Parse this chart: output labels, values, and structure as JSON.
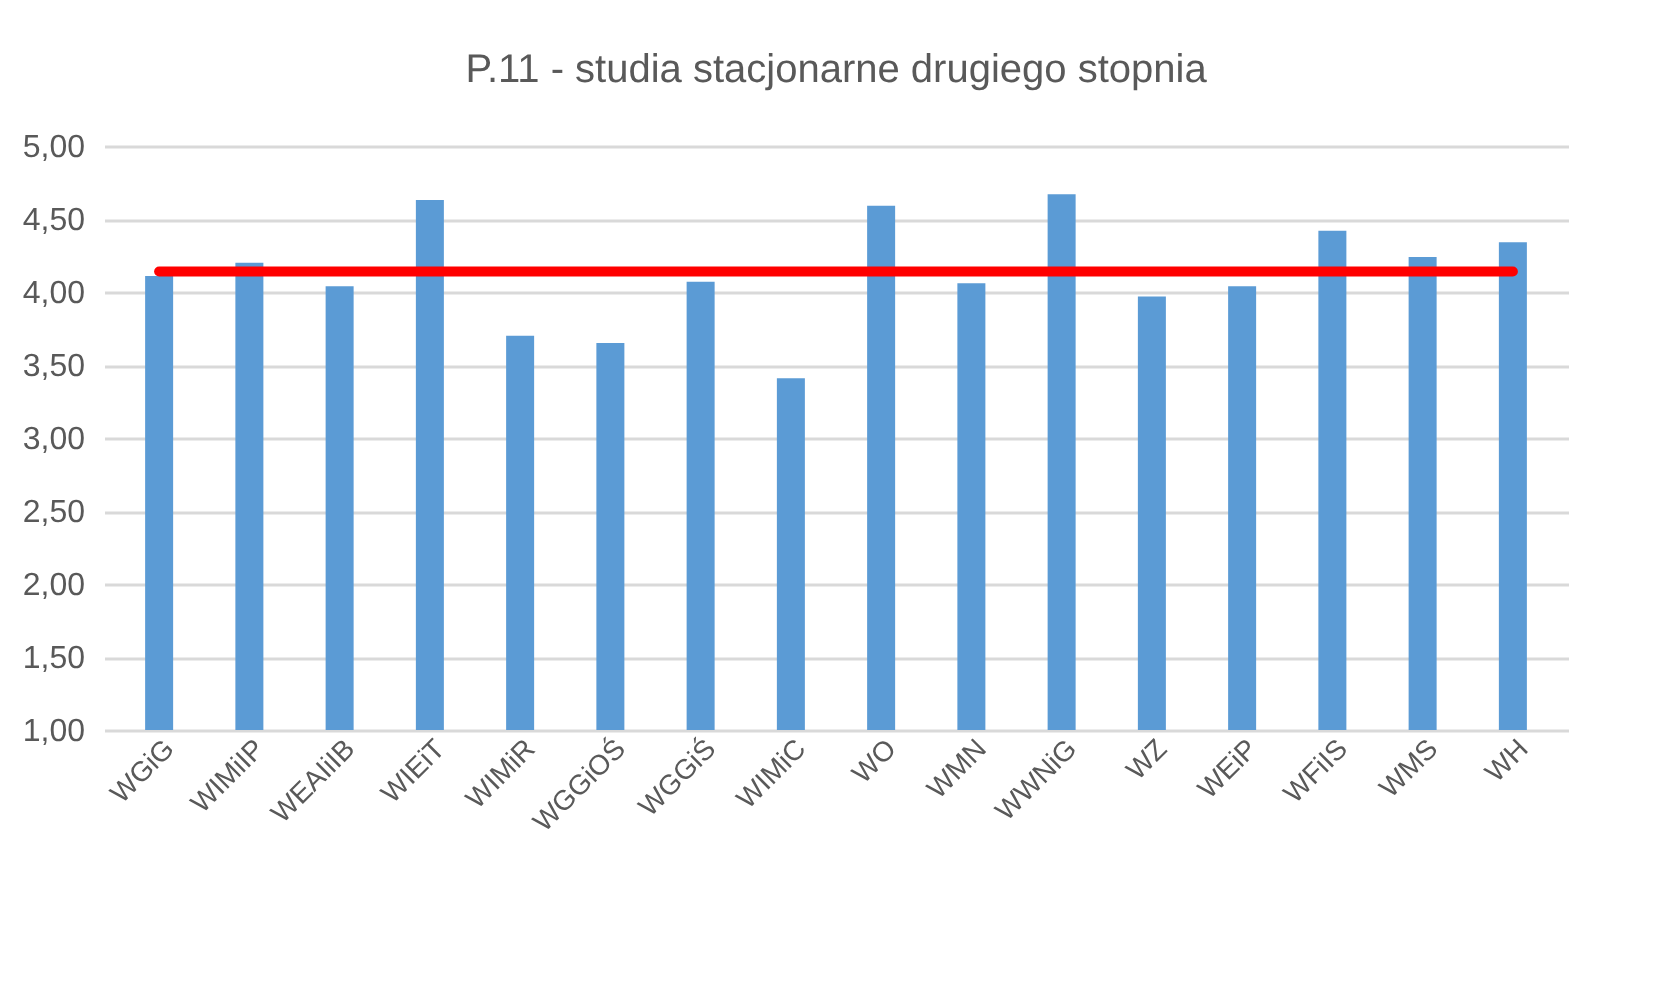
{
  "chart_data": {
    "type": "bar",
    "title": "P.11 - studia stacjonarne drugiego stopnia",
    "categories": [
      "WGiG",
      "WIMiIP",
      "WEAIiIB",
      "WIEiT",
      "WIMiR",
      "WGGiOŚ",
      "WGGiŚ",
      "WIMiC",
      "WO",
      "WMN",
      "WWNiG",
      "WZ",
      "WEiP",
      "WFiIS",
      "WMS",
      "WH"
    ],
    "values": [
      4.11,
      4.2,
      4.04,
      4.63,
      3.7,
      3.65,
      4.07,
      3.41,
      4.59,
      4.06,
      4.67,
      3.97,
      4.04,
      4.42,
      4.24,
      4.34
    ],
    "color": "#5b9bd5",
    "ylim": [
      1,
      5
    ],
    "yticks": [
      {
        "value": 1,
        "label": "1,00"
      },
      {
        "value": 1.5,
        "label": "1,50"
      },
      {
        "value": 2,
        "label": "2,00"
      },
      {
        "value": 2.5,
        "label": "2,50"
      },
      {
        "value": 3,
        "label": "3,00"
      },
      {
        "value": 3.5,
        "label": "3,50"
      },
      {
        "value": 4,
        "label": "4,00"
      },
      {
        "value": 4.5,
        "label": "4,50"
      },
      {
        "value": 5,
        "label": "5,00"
      }
    ],
    "grid": "y",
    "ref_lines": [
      {
        "axis": "y",
        "value": 4.14,
        "color": "#ff0000",
        "line_style": "solid"
      }
    ]
  }
}
